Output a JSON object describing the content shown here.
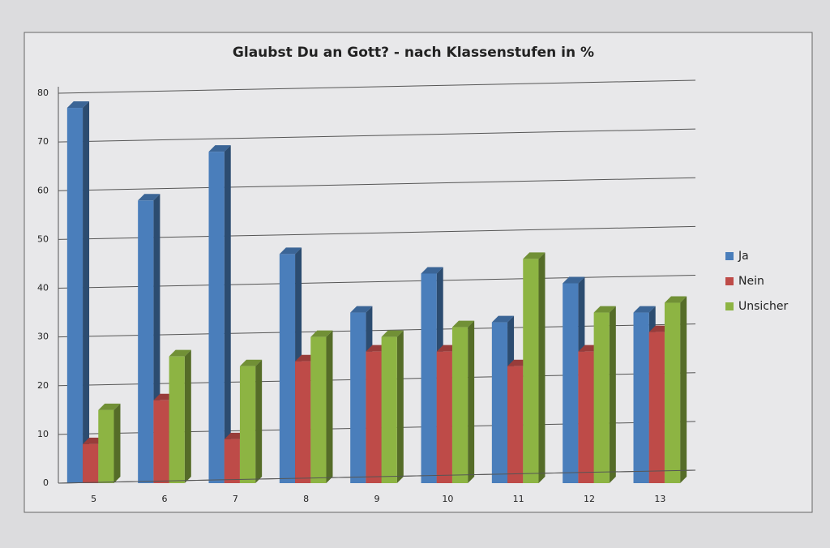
{
  "chart_data": {
    "type": "bar",
    "title": "Glaubst Du an Gott? - nach Klassenstufen in %",
    "categories": [
      "5",
      "6",
      "7",
      "8",
      "9",
      "10",
      "11",
      "12",
      "13"
    ],
    "series": [
      {
        "name": "Ja",
        "color": "#4a7ebb",
        "values": [
          77,
          58,
          68,
          47,
          35,
          43,
          33,
          41,
          35
        ]
      },
      {
        "name": "Nein",
        "color": "#be4b48",
        "values": [
          8,
          17,
          9,
          25,
          27,
          27,
          24,
          27,
          31
        ]
      },
      {
        "name": "Unsicher",
        "color": "#8db443",
        "values": [
          15,
          26,
          24,
          30,
          30,
          32,
          46,
          35,
          37
        ]
      }
    ],
    "ylim": [
      0,
      80
    ],
    "yticks": [
      0,
      10,
      20,
      30,
      40,
      50,
      60,
      70,
      80
    ],
    "grid": true,
    "legend": "right"
  }
}
